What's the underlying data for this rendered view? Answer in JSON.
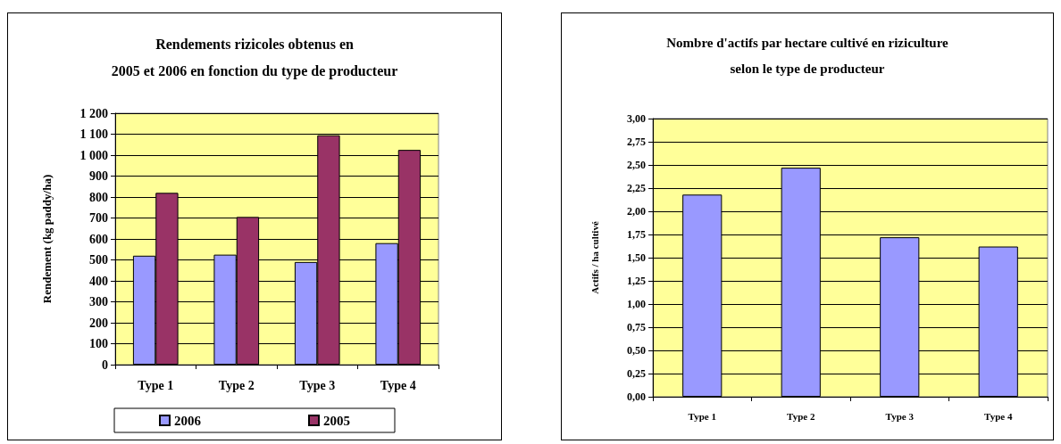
{
  "chart_data": [
    {
      "type": "bar",
      "title": "Rendements rizicoles obtenus en\n2005 et 2006 en fonction du type de producteur",
      "ylabel": "Rendement (kg paddy/ha)",
      "categories": [
        "Type 1",
        "Type 2",
        "Type 3",
        "Type 4"
      ],
      "series": [
        {
          "name": "2006",
          "color": "#9999ff",
          "values": [
            520,
            525,
            490,
            580
          ]
        },
        {
          "name": "2005",
          "color": "#993366",
          "values": [
            820,
            705,
            1095,
            1025
          ]
        }
      ],
      "ylim": [
        0,
        1200
      ],
      "yticks": [
        0,
        100,
        200,
        300,
        400,
        500,
        600,
        700,
        800,
        900,
        {
          "value": 1000,
          "label": "1 000"
        },
        {
          "value": 1100,
          "label": "1 100"
        },
        {
          "value": 1200,
          "label": "1 200"
        }
      ],
      "grid": "y",
      "legend": "bottom"
    },
    {
      "type": "bar",
      "title": "Nombre d'actifs par hectare cultivé en riziculture\nselon le type de producteur",
      "ylabel": "Actifs / ha cultivé",
      "categories": [
        "Type 1",
        "Type 2",
        "Type 3",
        "Type 4"
      ],
      "series": [
        {
          "color": "#9999ff",
          "values": [
            2.18,
            2.47,
            1.72,
            1.62
          ]
        }
      ],
      "ylim": [
        0,
        3
      ],
      "yticks": [
        {
          "value": 0,
          "label": "0,00"
        },
        {
          "value": 0.25,
          "label": "0,25"
        },
        {
          "value": 0.5,
          "label": "0,50"
        },
        {
          "value": 0.75,
          "label": "0,75"
        },
        {
          "value": 1,
          "label": "1,00"
        },
        {
          "value": 1.25,
          "label": "1,25"
        },
        {
          "value": 1.5,
          "label": "1,50"
        },
        {
          "value": 1.75,
          "label": "1,75"
        },
        {
          "value": 2,
          "label": "2,00"
        },
        {
          "value": 2.25,
          "label": "2,25"
        },
        {
          "value": 2.5,
          "label": "2,50"
        },
        {
          "value": 2.75,
          "label": "2,75"
        },
        {
          "value": 3,
          "label": "3,00"
        }
      ],
      "grid": "y",
      "legend": false
    }
  ]
}
